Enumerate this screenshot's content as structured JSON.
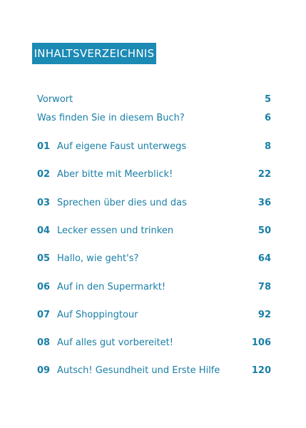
{
  "header": {
    "title": "INHALTSVERZEICHNIS"
  },
  "front_matter": [
    {
      "title": "Vorwort",
      "page": 5
    },
    {
      "title": "Was finden Sie in diesem Buch?",
      "page": 6
    }
  ],
  "chapters": [
    {
      "number": "01",
      "title": "Auf eigene Faust unterwegs",
      "page": 8
    },
    {
      "number": "02",
      "title": "Aber bitte mit Meerblick!",
      "page": 22
    },
    {
      "number": "03",
      "title": "Sprechen über dies und das",
      "page": 36
    },
    {
      "number": "04",
      "title": "Lecker essen und trinken",
      "page": 50
    },
    {
      "number": "05",
      "title": "Hallo, wie geht's?",
      "page": 64
    },
    {
      "number": "06",
      "title": "Auf in den Supermarkt!",
      "page": 78
    },
    {
      "number": "07",
      "title": "Auf Shoppingtour",
      "page": 92
    },
    {
      "number": "08",
      "title": "Auf alles gut vorbereitet!",
      "page": 106
    },
    {
      "number": "09",
      "title": "Autsch! Gesundheit und Erste Hilfe",
      "page": 120
    }
  ]
}
